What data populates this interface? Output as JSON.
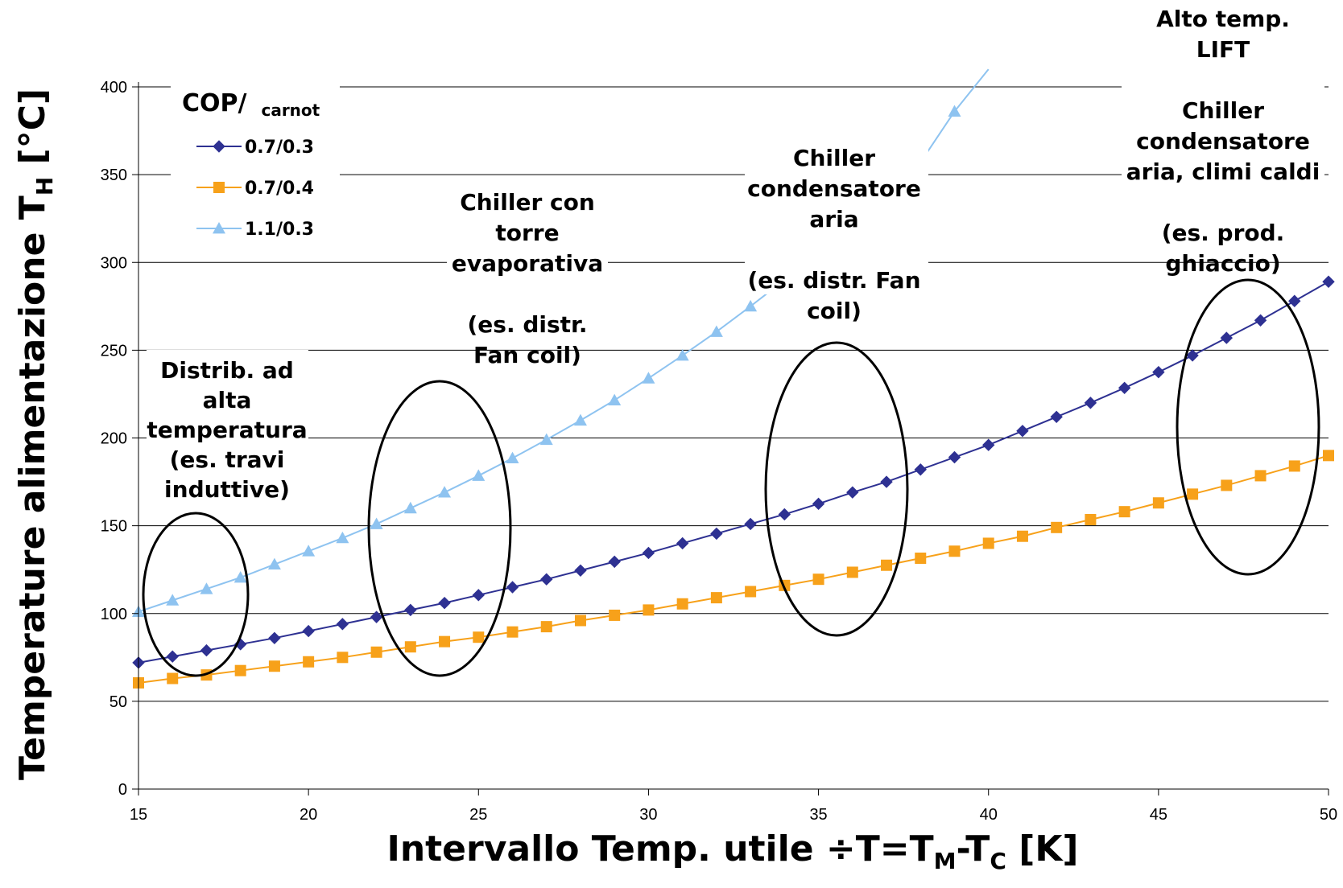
{
  "chart_data": {
    "type": "line",
    "ylabel_main": "Temperature alimentazione T",
    "ylabel_sub": "H",
    "ylabel_end": " [°C]",
    "xlabel_parts": [
      {
        "t": "Intervallo Temp. utile ÷T=T",
        "sub": false
      },
      {
        "t": "M",
        "sub": true
      },
      {
        "t": "-T",
        "sub": false
      },
      {
        "t": "C",
        "sub": true
      },
      {
        "t": " [K]",
        "sub": false
      }
    ],
    "xlim": [
      15,
      50
    ],
    "ylim": [
      0,
      400
    ],
    "xticks": [
      15,
      20,
      25,
      30,
      35,
      40,
      45,
      50
    ],
    "yticks": [
      0,
      50,
      100,
      150,
      200,
      250,
      300,
      350,
      400
    ],
    "grid": true,
    "legend_title": "COP/",
    "legend_title_sub": "carnot",
    "legend_position": "top-left",
    "series": [
      {
        "name": "0.7/0.3",
        "color": "#2E3192",
        "marker": "diamond",
        "x": [
          15,
          16,
          17,
          18,
          19,
          20,
          21,
          22,
          23,
          24,
          25,
          26,
          27,
          28,
          29,
          30,
          31,
          32,
          33,
          34,
          35,
          36,
          37,
          38,
          39,
          40,
          41,
          42,
          43,
          44,
          45,
          46,
          47,
          48,
          49,
          50
        ],
        "y": [
          72,
          75.5,
          79,
          82.5,
          86,
          90,
          94,
          98,
          102,
          106,
          110.5,
          115,
          119.5,
          124.5,
          129.5,
          134.5,
          140,
          145.5,
          151,
          156.5,
          162.5,
          169,
          175,
          182,
          189,
          196,
          204,
          212,
          220,
          228.5,
          237.5,
          247,
          257,
          267,
          278,
          289
        ]
      },
      {
        "name": "0.7/0.4",
        "color": "#F7A11A",
        "marker": "square",
        "x": [
          15,
          16,
          17,
          18,
          19,
          20,
          21,
          22,
          23,
          24,
          25,
          26,
          27,
          28,
          29,
          30,
          31,
          32,
          33,
          34,
          35,
          36,
          37,
          38,
          39,
          40,
          41,
          42,
          43,
          44,
          45,
          46,
          47,
          48,
          49,
          50
        ],
        "y": [
          60.5,
          63,
          65,
          67.5,
          70,
          72.5,
          75,
          78,
          81,
          84,
          86.5,
          89.5,
          92.5,
          96,
          99,
          102,
          105.5,
          109,
          112.5,
          116,
          119.5,
          123.5,
          127.5,
          131.5,
          135.5,
          140,
          144,
          149,
          153.5,
          158,
          163,
          168,
          173,
          178.5,
          184,
          190
        ]
      },
      {
        "name": "1.1/0.3",
        "color": "#8EC3F0",
        "marker": "triangle",
        "x": [
          15,
          16,
          17,
          18,
          19,
          20,
          21,
          22,
          23,
          24,
          25,
          26,
          27,
          28,
          29,
          30,
          31,
          32,
          33,
          34,
          35,
          36,
          37,
          38,
          39,
          40
        ],
        "y": [
          101,
          107.5,
          114,
          120.5,
          128,
          135.5,
          143,
          151,
          160,
          169,
          178.5,
          188.5,
          199,
          210,
          221.5,
          234,
          247,
          260.5,
          275,
          290,
          305,
          322,
          339,
          357,
          386,
          410
        ]
      }
    ],
    "annotations": [
      {
        "lines": [
          "Distrib. ad",
          "alta",
          "temperatura",
          "(es. travi",
          "induttive)"
        ]
      },
      {
        "lines": [
          "Chiller con",
          "torre",
          "evaporativa",
          "",
          "(es. distr.",
          "Fan coil)"
        ]
      },
      {
        "lines": [
          "Chiller",
          "condensatore",
          "aria",
          "",
          "(es. distr. Fan",
          "coil)"
        ]
      },
      {
        "lines": [
          "Alto temp.",
          "LIFT",
          "",
          "Chiller",
          "condensatore",
          "aria, climi caldi",
          "",
          "(es. prod.",
          "ghiaccio)"
        ]
      }
    ]
  }
}
